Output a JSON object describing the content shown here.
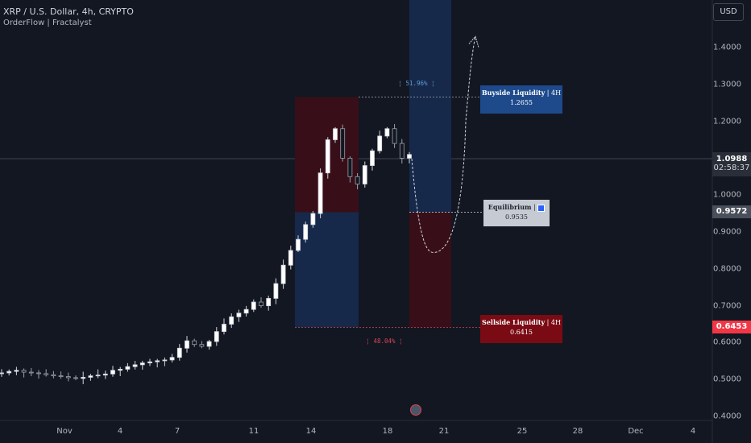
{
  "header": {
    "title": "XRP / U.S. Dollar, 4h, CRYPTO",
    "subtitle": "OrderFlow | Fractalyst",
    "currency": "USD"
  },
  "chart_data": {
    "type": "candlestick",
    "x_ticks": [
      "Nov",
      "4",
      "7",
      "11",
      "14",
      "18",
      "21",
      "25",
      "28",
      "Dec",
      "4"
    ],
    "y_ticks": [
      "1.4000",
      "1.3000",
      "1.2000",
      "1.1000",
      "1.0000",
      "0.9000",
      "0.8000",
      "0.7000",
      "0.6000",
      "0.5000",
      "0.4000"
    ],
    "ylim": [
      0.39,
      1.5
    ],
    "price_path": [
      [
        0.518,
        0.522,
        0.525,
        0.52,
        0.518,
        0.516,
        0.513,
        0.51,
        0.508,
        0.505,
        0.503,
        0.506,
        0.51,
        0.512,
        0.515,
        0.525,
        0.528,
        0.535,
        0.54,
        0.545,
        0.548,
        0.551,
        0.553,
        0.56,
        0.585,
        0.605,
        0.595,
        0.59,
        0.603,
        0.63,
        0.65,
        0.67,
        0.68,
        0.69,
        0.71,
        0.7,
        0.72,
        0.76,
        0.81,
        0.85,
        0.88,
        0.92,
        0.95,
        1.06,
        1.15,
        1.18,
        1.1,
        1.05,
        1.03,
        1.08,
        1.12,
        1.16,
        1.18,
        1.14,
        1.1,
        1.11
      ]
    ],
    "current_price": "1.0988",
    "countdown": "02:58:37",
    "levels": {
      "buyside": {
        "label": "Buyside Liquidity",
        "timeframe": "4H",
        "value": "1.2655"
      },
      "equilibrium": {
        "label": "Equilibrium",
        "value": "0.9535",
        "axis_tag": "0.9572"
      },
      "sellside": {
        "label": "Sellside Liquidity",
        "timeframe": "4H",
        "value": "0.6415",
        "axis_tag": "0.6453"
      }
    },
    "annotations": {
      "upper_pct": "51.96%",
      "lower_pct": "48.04%"
    },
    "colors": {
      "buyside": "#1e4a8c",
      "sellside": "#7a0b14",
      "equilibrium": "#c5cad3",
      "up_candle": "#d1d4dc",
      "down_candle": "#9aa0aa"
    }
  }
}
